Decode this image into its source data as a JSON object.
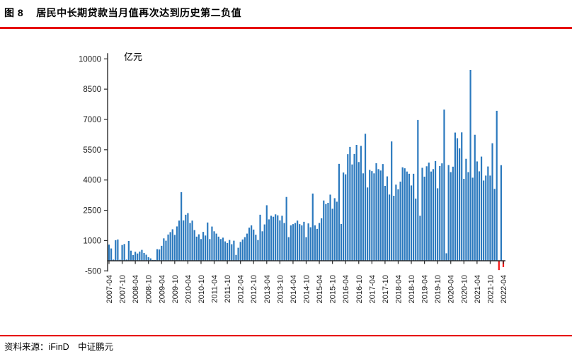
{
  "header": {
    "figure_label": "图 8",
    "title": "居民中长期贷款当月值再次达到历史第二负值"
  },
  "footer": {
    "source": "资料来源：iFinD　中证鹏元"
  },
  "colors": {
    "accent_rule": "#e60000",
    "bar_positive": "#2b79be",
    "bar_negative": "#f51414",
    "axis": "#2b2b2b",
    "tick_label": "#1a1a1a"
  },
  "chart_data": {
    "type": "bar",
    "title": "居民中长期贷款当月值再次达到历史第二负值",
    "unit_label": "亿元",
    "ylabel": "亿元",
    "xlabel": "",
    "grid": false,
    "legend": "none",
    "ylim": [
      -500,
      10000
    ],
    "y_ticks": [
      10000,
      8500,
      7000,
      5500,
      4000,
      2500,
      1000,
      -500
    ],
    "x_start": "2007-04",
    "x_end": "2022-04",
    "x_frequency": "monthly",
    "x_tick_labels": [
      "2007-04",
      "2007-10",
      "2008-04",
      "2008-10",
      "2009-04",
      "2009-10",
      "2010-04",
      "2010-10",
      "2011-04",
      "2011-10",
      "2012-04",
      "2012-10",
      "2013-04",
      "2013-10",
      "2014-04",
      "2014-10",
      "2015-04",
      "2015-10",
      "2016-04",
      "2016-10",
      "2017-04",
      "2017-10",
      "2018-04",
      "2018-10",
      "2019-04",
      "2019-10",
      "2020-04",
      "2020-10",
      "2021-04",
      "2021-10",
      "2022-04"
    ],
    "values": [
      800,
      610,
      60,
      1020,
      1055,
      50,
      780,
      830,
      60,
      980,
      500,
      280,
      445,
      360,
      455,
      540,
      385,
      300,
      180,
      120,
      40,
      40,
      575,
      560,
      740,
      1110,
      995,
      1300,
      1420,
      1560,
      1280,
      1700,
      1990,
      3400,
      2000,
      2280,
      2360,
      1870,
      1990,
      1520,
      1195,
      1310,
      1075,
      1430,
      1250,
      1895,
      1075,
      1695,
      1460,
      1345,
      1195,
      1075,
      1145,
      960,
      880,
      1030,
      820,
      995,
      290,
      645,
      935,
      1055,
      1170,
      1345,
      1640,
      1755,
      1545,
      1290,
      1030,
      2280,
      1460,
      1800,
      2750,
      2050,
      2230,
      2180,
      2300,
      2250,
      2000,
      2230,
      1870,
      3160,
      1170,
      1755,
      1815,
      1870,
      1990,
      1815,
      1755,
      1930,
      1170,
      1850,
      1660,
      3330,
      1755,
      1580,
      1870,
      2105,
      2985,
      2810,
      2870,
      3275,
      2575,
      3100,
      2925,
      4800,
      1820,
      4370,
      4280,
      5280,
      5640,
      4770,
      5290,
      5740,
      4890,
      5690,
      4330,
      6290,
      3630,
      4500,
      4440,
      4330,
      4830,
      4540,
      4470,
      4790,
      3710,
      4180,
      3280,
      5910,
      3220,
      3770,
      3540,
      3920,
      4630,
      4580,
      4420,
      4310,
      3730,
      4310,
      3080,
      6970,
      2230,
      4605,
      4165,
      4680,
      4860,
      4420,
      4540,
      4940,
      3590,
      4690,
      4825,
      7490,
      370,
      4740,
      4390,
      4660,
      6350,
      6070,
      5570,
      6360,
      4060,
      5050,
      4390,
      9450,
      4115,
      6240,
      4920,
      4430,
      5160,
      3975,
      4220,
      4670,
      4220,
      5820,
      3560,
      7425,
      -460,
      4735,
      -315
    ]
  }
}
